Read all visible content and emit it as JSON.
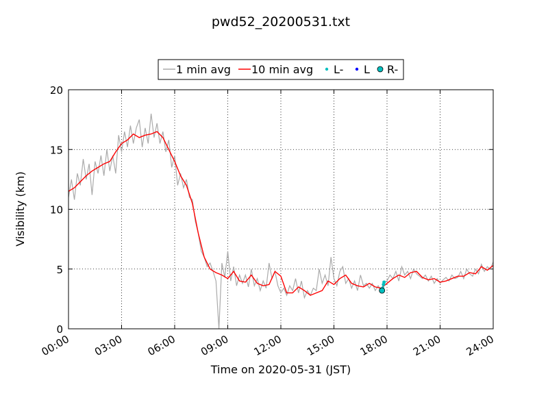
{
  "chart_data": {
    "type": "line",
    "title": "pwd52_20200531.txt",
    "x_label": "Time on 2020-05-31 (JST)",
    "y_label": "Visibility (km)",
    "xlim": [
      0,
      1440
    ],
    "xticks": [
      {
        "value": 0,
        "label": "00:00"
      },
      {
        "value": 180,
        "label": "03:00"
      },
      {
        "value": 360,
        "label": "06:00"
      },
      {
        "value": 540,
        "label": "09:00"
      },
      {
        "value": 720,
        "label": "12:00"
      },
      {
        "value": 900,
        "label": "15:00"
      },
      {
        "value": 1080,
        "label": "18:00"
      },
      {
        "value": 1260,
        "label": "21:00"
      },
      {
        "value": 1440,
        "label": "24:00"
      }
    ],
    "ylim": [
      0,
      20
    ],
    "yticks": [
      0,
      5,
      10,
      15,
      20
    ],
    "grid": true,
    "legend": "top",
    "series": [
      {
        "name": "1 min avg",
        "color": "#aaaaaa",
        "mode": "line",
        "x": [
          0,
          10,
          20,
          30,
          40,
          50,
          60,
          70,
          80,
          90,
          100,
          110,
          120,
          130,
          140,
          150,
          160,
          170,
          180,
          190,
          200,
          210,
          220,
          230,
          240,
          250,
          260,
          270,
          280,
          290,
          300,
          310,
          320,
          330,
          340,
          350,
          360,
          370,
          380,
          390,
          400,
          410,
          420,
          430,
          440,
          450,
          460,
          470,
          480,
          490,
          500,
          510,
          520,
          530,
          540,
          550,
          560,
          570,
          580,
          590,
          600,
          610,
          620,
          630,
          640,
          650,
          660,
          670,
          680,
          690,
          700,
          710,
          720,
          730,
          740,
          750,
          760,
          770,
          780,
          790,
          800,
          810,
          820,
          830,
          840,
          850,
          860,
          870,
          880,
          890,
          900,
          910,
          920,
          930,
          940,
          950,
          960,
          970,
          980,
          990,
          1000,
          1010,
          1020,
          1030,
          1040,
          1050,
          1060,
          1070,
          1080,
          1090,
          1100,
          1110,
          1120,
          1130,
          1140,
          1150,
          1160,
          1170,
          1180,
          1190,
          1200,
          1210,
          1220,
          1230,
          1240,
          1250,
          1260,
          1270,
          1280,
          1290,
          1300,
          1310,
          1320,
          1330,
          1340,
          1350,
          1360,
          1370,
          1380,
          1390,
          1400,
          1410,
          1420,
          1430,
          1440
        ],
        "values": [
          11.0,
          12.5,
          10.8,
          13.0,
          12.0,
          14.2,
          12.5,
          13.8,
          11.2,
          14.0,
          13.0,
          14.5,
          12.8,
          15.0,
          13.2,
          14.5,
          13.0,
          16.2,
          14.8,
          16.5,
          15.2,
          17.0,
          15.5,
          16.8,
          17.5,
          15.2,
          16.8,
          15.5,
          18.0,
          16.0,
          17.2,
          15.5,
          16.5,
          14.8,
          15.8,
          13.5,
          14.5,
          12.0,
          13.0,
          11.8,
          12.5,
          11.0,
          10.8,
          9.0,
          8.0,
          6.5,
          6.0,
          5.2,
          5.5,
          4.8,
          4.0,
          0.0,
          5.5,
          4.3,
          6.5,
          4.0,
          5.2,
          3.6,
          4.5,
          3.8,
          4.5,
          3.5,
          5.0,
          3.6,
          4.2,
          3.2,
          4.0,
          3.4,
          5.5,
          4.2,
          4.8,
          3.6,
          3.0,
          3.4,
          2.8,
          3.6,
          3.2,
          4.2,
          3.0,
          4.0,
          2.6,
          3.2,
          2.8,
          3.4,
          3.2,
          5.0,
          3.8,
          4.5,
          3.6,
          6.0,
          4.2,
          3.6,
          4.8,
          5.2,
          3.8,
          4.2,
          3.4,
          4.0,
          3.2,
          4.5,
          3.6,
          3.8,
          3.4,
          3.8,
          3.2,
          3.6,
          3.2,
          3.9,
          4.0,
          4.5,
          4.2,
          4.8,
          4.0,
          5.2,
          4.5,
          4.8,
          4.2,
          5.0,
          4.6,
          4.4,
          4.2,
          4.5,
          4.0,
          4.4,
          3.8,
          4.2,
          3.8,
          4.1,
          4.3,
          4.0,
          4.5,
          4.2,
          4.3,
          4.8,
          4.2,
          5.0,
          4.6,
          4.4,
          5.0,
          4.6,
          5.4,
          4.8,
          5.2,
          5.0,
          5.6
        ]
      },
      {
        "name": "10 min avg",
        "color": "#ff0000",
        "mode": "line",
        "x": [
          0,
          20,
          40,
          60,
          80,
          100,
          120,
          140,
          160,
          180,
          200,
          220,
          240,
          260,
          280,
          300,
          320,
          340,
          360,
          380,
          400,
          420,
          440,
          460,
          480,
          500,
          520,
          540,
          560,
          580,
          600,
          620,
          640,
          660,
          680,
          700,
          720,
          740,
          760,
          780,
          800,
          820,
          840,
          860,
          880,
          900,
          920,
          940,
          960,
          980,
          1000,
          1020,
          1040,
          1060,
          1080,
          1100,
          1120,
          1140,
          1160,
          1180,
          1200,
          1220,
          1240,
          1260,
          1280,
          1300,
          1320,
          1340,
          1360,
          1380,
          1400,
          1420,
          1440
        ],
        "values": [
          11.5,
          11.8,
          12.3,
          12.8,
          13.2,
          13.5,
          13.8,
          14.0,
          14.8,
          15.5,
          15.8,
          16.3,
          16.0,
          16.2,
          16.3,
          16.5,
          16.0,
          15.0,
          14.0,
          12.8,
          12.0,
          10.5,
          8.0,
          6.0,
          5.0,
          4.7,
          4.5,
          4.2,
          4.8,
          4.0,
          3.9,
          4.5,
          3.8,
          3.6,
          3.7,
          4.8,
          4.4,
          3.0,
          3.0,
          3.5,
          3.2,
          2.8,
          3.0,
          3.2,
          4.0,
          3.7,
          4.2,
          4.5,
          3.8,
          3.6,
          3.5,
          3.8,
          3.5,
          3.4,
          3.8,
          4.2,
          4.5,
          4.3,
          4.7,
          4.8,
          4.3,
          4.1,
          4.2,
          3.9,
          4.0,
          4.2,
          4.4,
          4.4,
          4.7,
          4.6,
          5.2,
          4.9,
          5.3
        ]
      },
      {
        "name": "L-",
        "color": "#00bfbf",
        "mode": "dot",
        "x": [
          1065,
          1068,
          1070
        ],
        "values": [
          3.4,
          3.7,
          3.9
        ]
      },
      {
        "name": "L",
        "color": "#0000ff",
        "mode": "dot",
        "x": [],
        "values": []
      },
      {
        "name": "R-",
        "color": "#00bfbf",
        "mode": "circle",
        "x": [
          1063
        ],
        "values": [
          3.2
        ]
      }
    ]
  }
}
